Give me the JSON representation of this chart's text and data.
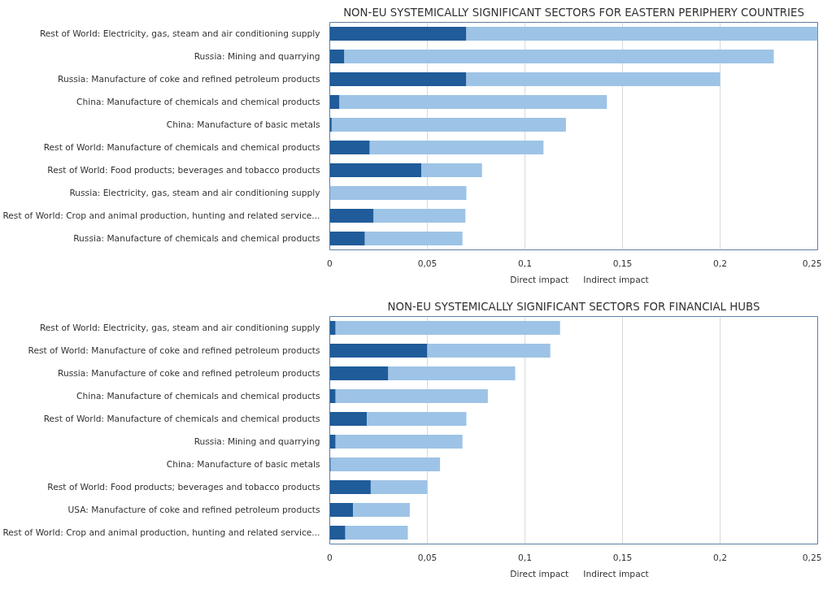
{
  "chart_data": [
    {
      "type": "bar",
      "orientation": "horizontal",
      "stacked": true,
      "title": "NON-EU SYSTEMICALLY SIGNIFICANT SECTORS FOR EASTERN PERIPHERY COUNTRIES",
      "categories": [
        "Rest of World: Electricity, gas, steam and air conditioning supply",
        "Russia: Mining and quarrying",
        "Russia: Manufacture of coke and refined petroleum products",
        "China: Manufacture of chemicals and chemical products",
        "China: Manufacture of basic metals",
        "Rest of World: Manufacture of chemicals and chemical products",
        "Rest of World: Food products; beverages and tobacco products",
        "Russia: Electricity, gas, steam and air conditioning supply",
        "Rest of World: Crop and animal production, hunting and related service...",
        "Russia: Manufacture of chemicals and chemical products"
      ],
      "series": [
        {
          "name": "Direct impact",
          "color": "#1f5c99",
          "values": [
            0.07,
            0.0075,
            0.07,
            0.005,
            0.001,
            0.0205,
            0.047,
            0,
            0.0225,
            0.018
          ]
        },
        {
          "name": "Indirect impact",
          "color": "#9dc3e6",
          "values": [
            0.18,
            0.22,
            0.13,
            0.137,
            0.12,
            0.089,
            0.031,
            0.07,
            0.047,
            0.05
          ]
        }
      ],
      "xlim": [
        0,
        0.25
      ],
      "xticks": [
        0,
        {
          "value": 0.05,
          "label": "0,05"
        },
        {
          "value": 0.1,
          "label": "0,1"
        },
        {
          "value": 0.15,
          "label": "0,15"
        },
        {
          "value": 0.2,
          "label": "0,2"
        },
        {
          "value": 0.25,
          "label": "0,25"
        }
      ],
      "grid": "x",
      "legend": "bottom"
    },
    {
      "type": "bar",
      "orientation": "horizontal",
      "stacked": true,
      "title": "NON-EU SYSTEMICALLY SIGNIFICANT SECTORS FOR FINANCIAL HUBS",
      "categories": [
        "Rest of World: Electricity, gas, steam and air conditioning supply",
        "Rest of World: Manufacture of coke and refined petroleum products",
        "Russia: Manufacture of coke and refined petroleum products",
        "China: Manufacture of chemicals and chemical products",
        "Rest of World: Manufacture of chemicals and chemical products",
        "Russia: Mining and quarrying",
        "China: Manufacture of basic metals",
        "Rest of World: Food products; beverages and tobacco products",
        "USA: Manufacture of coke and refined petroleum products",
        "Rest of World: Crop and animal production, hunting and related service..."
      ],
      "series": [
        {
          "name": "Direct impact",
          "color": "#1f5c99",
          "values": [
            0.003,
            0.05,
            0.03,
            0.003,
            0.019,
            0.003,
            0.0005,
            0.021,
            0.012,
            0.008
          ]
        },
        {
          "name": "Indirect impact",
          "color": "#9dc3e6",
          "values": [
            0.115,
            0.063,
            0.065,
            0.078,
            0.051,
            0.065,
            0.056,
            0.029,
            0.029,
            0.032
          ]
        }
      ],
      "xlim": [
        0,
        0.25
      ],
      "xticks": [
        0,
        {
          "value": 0.05,
          "label": "0,05"
        },
        {
          "value": 0.1,
          "label": "0,1"
        },
        {
          "value": 0.15,
          "label": "0,15"
        },
        {
          "value": 0.2,
          "label": "0,2"
        },
        {
          "value": 0.25,
          "label": "0,25"
        }
      ],
      "grid": "x",
      "legend": "bottom"
    }
  ]
}
